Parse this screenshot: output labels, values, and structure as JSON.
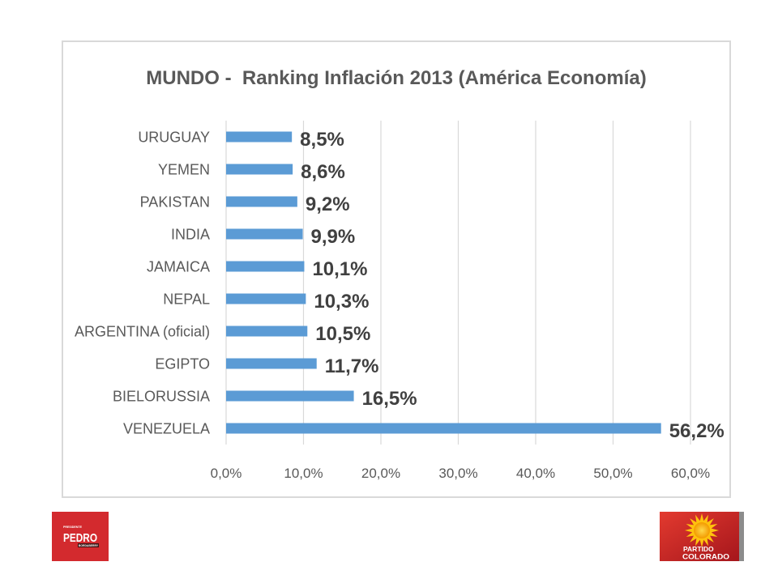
{
  "chart_data": {
    "type": "bar",
    "orientation": "horizontal",
    "title": "MUNDO -  Ranking Inflación 2013 (América Economía)",
    "categories": [
      "URUGUAY",
      "YEMEN",
      "PAKISTAN",
      "INDIA",
      "JAMAICA",
      "NEPAL",
      "ARGENTINA (oficial)",
      "EGIPTO",
      "BIELORUSSIA",
      "VENEZUELA"
    ],
    "values": [
      8.5,
      8.6,
      9.2,
      9.9,
      10.1,
      10.3,
      10.5,
      11.7,
      16.5,
      56.2
    ],
    "value_labels": [
      "8,5%",
      "8,6%",
      "9,2%",
      "9,9%",
      "10,1%",
      "10,3%",
      "10,5%",
      "11,7%",
      "16,5%",
      "56,2%"
    ],
    "x_ticks": [
      0,
      10,
      20,
      30,
      40,
      50,
      60
    ],
    "x_tick_labels": [
      "0,0%",
      "10,0%",
      "20,0%",
      "30,0%",
      "40,0%",
      "50,0%",
      "60,0%"
    ],
    "xlim": [
      0,
      60
    ],
    "grid": "vertical",
    "bar_color": "#5B9BD5"
  },
  "logos": {
    "left": {
      "top_text": "PRESIDENTE",
      "name": "PEDRO",
      "bottom_text": "BORDABERRY",
      "color": "#D32A2E"
    },
    "right": {
      "line1": "PARTIDO",
      "line2": "COLORADO",
      "color": "#C8202A",
      "sun_color": "#FFC20E"
    }
  },
  "colors": {
    "text": "#595959",
    "value_text": "#404040",
    "grid": "#D9D9D9",
    "frame": "#D9D9D9",
    "background": "#FFFFFF"
  }
}
